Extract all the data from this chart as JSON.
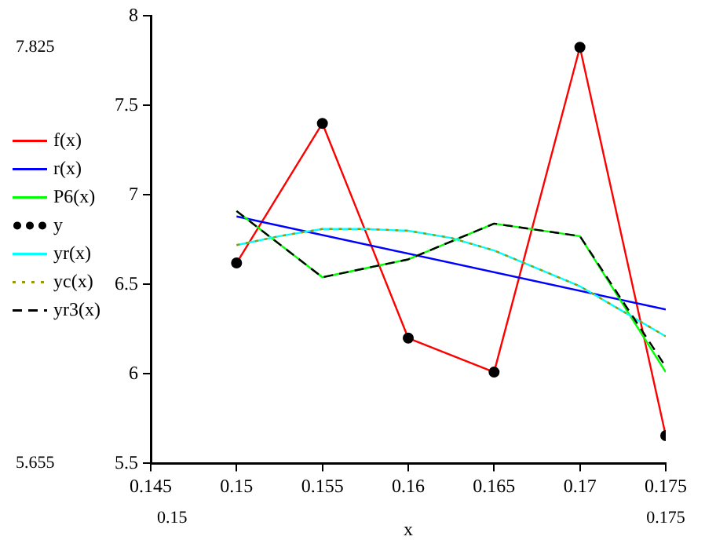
{
  "chart_data": {
    "type": "line",
    "xlabel": "x",
    "xlim": [
      0.145,
      0.175
    ],
    "xticks": [
      0.145,
      0.15,
      0.155,
      0.16,
      0.165,
      0.17,
      0.175
    ],
    "ylim": [
      5.5,
      8
    ],
    "yticks": [
      5.5,
      6,
      6.5,
      7,
      7.5,
      8
    ],
    "grid": false,
    "legend": "left",
    "marker": "none",
    "line_style": "solid",
    "annotations": [
      "7.825",
      "5.655",
      "0.15",
      "0.175"
    ],
    "series": [
      {
        "name": "f(x)",
        "color": "#ff0000",
        "x": [
          0.15,
          0.155,
          0.16,
          0.165,
          0.17,
          0.175
        ],
        "values": [
          6.62,
          7.4,
          6.2,
          6.01,
          7.825,
          5.655
        ]
      },
      {
        "name": "r(x)",
        "color": "#0000ff",
        "x": [
          0.15,
          0.175
        ],
        "values": [
          6.88,
          6.36
        ]
      },
      {
        "name": "P6(x)",
        "color": "#00ff00",
        "x": [
          0.15,
          0.155,
          0.16,
          0.165,
          0.17,
          0.175
        ],
        "values": [
          6.91,
          6.54,
          6.64,
          6.84,
          6.77,
          6.01
        ]
      },
      {
        "name": "y",
        "type": "scatter",
        "marker": "circle",
        "color": "#000000",
        "x": [
          0.15,
          0.155,
          0.16,
          0.165,
          0.17,
          0.175
        ],
        "values": [
          6.62,
          7.4,
          6.2,
          6.01,
          7.825,
          5.655
        ]
      },
      {
        "name": "yr(x)",
        "color": "#00ffff",
        "x": [
          0.15,
          0.1525,
          0.155,
          0.1575,
          0.16,
          0.1625,
          0.165,
          0.1675,
          0.17,
          0.1725,
          0.175
        ],
        "values": [
          6.72,
          6.77,
          6.81,
          6.81,
          6.8,
          6.76,
          6.69,
          6.59,
          6.49,
          6.35,
          6.21
        ]
      },
      {
        "name": "yc(x)",
        "color": "#999900",
        "line_style": "dotted",
        "x": [
          0.15,
          0.1525,
          0.155,
          0.1575,
          0.16,
          0.1625,
          0.165,
          0.1675,
          0.17,
          0.1725,
          0.175
        ],
        "values": [
          6.72,
          6.77,
          6.81,
          6.81,
          6.8,
          6.76,
          6.69,
          6.59,
          6.49,
          6.35,
          6.21
        ]
      },
      {
        "name": "yr3(x)",
        "color": "#000000",
        "line_style": "dashed",
        "x": [
          0.15,
          0.155,
          0.16,
          0.165,
          0.17,
          0.175
        ],
        "values": [
          6.91,
          6.54,
          6.64,
          6.84,
          6.77,
          6.04
        ]
      }
    ]
  }
}
